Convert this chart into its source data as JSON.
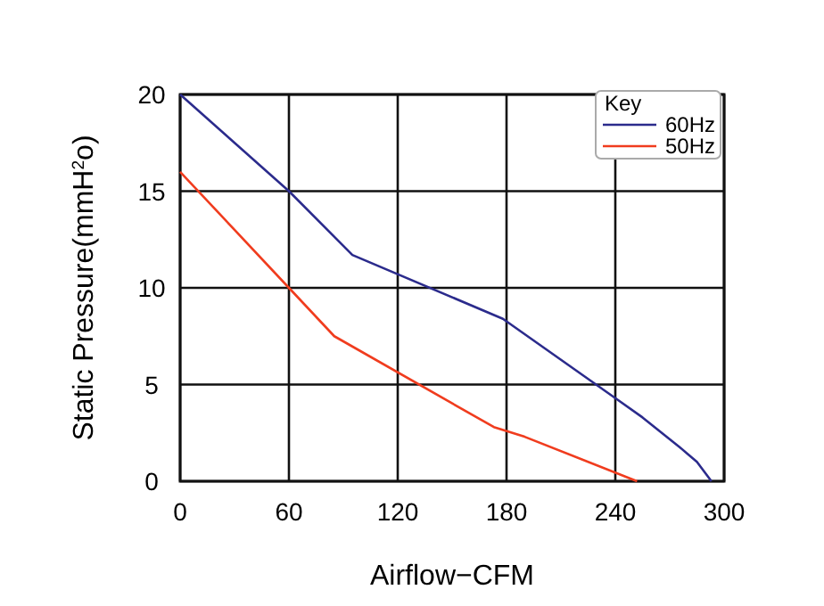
{
  "chart_data": {
    "type": "line",
    "xlabel": "Airflow−CFM",
    "ylabel": "Static Pressure(mmH$^{2}$o)",
    "legend_title": "Key",
    "legend": "top right",
    "grid": true,
    "line_style": "solid",
    "xlim": [
      0,
      300
    ],
    "ylim": [
      0,
      20
    ],
    "xticks": [
      0,
      60,
      120,
      180,
      240,
      300
    ],
    "yticks": [
      0,
      5,
      10,
      15,
      20
    ],
    "series": [
      {
        "name": "60Hz",
        "color": "#2b2b8c",
        "x": [
          0,
          60,
          95,
          178,
          240,
          255,
          275,
          285,
          293
        ],
        "values": [
          20,
          15,
          11.7,
          8.4,
          4.3,
          3.3,
          1.8,
          1.0,
          0
        ]
      },
      {
        "name": "50Hz",
        "color": "#f03c1e",
        "x": [
          0,
          60,
          85,
          173,
          190,
          252
        ],
        "values": [
          16,
          10,
          7.5,
          2.8,
          2.3,
          0
        ]
      }
    ]
  }
}
